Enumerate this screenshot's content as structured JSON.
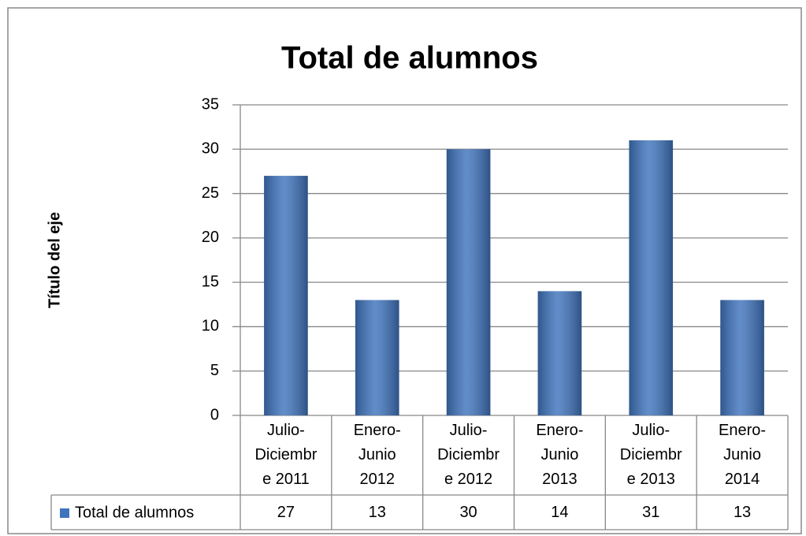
{
  "chart_data": {
    "type": "bar",
    "title": "Total de alumnos",
    "y_axis_title": "Título del eje",
    "categories": [
      "Julio-Diciembre 2011",
      "Enero-Junio 2012",
      "Julio-Diciembre 2012",
      "Enero-Junio 2013",
      "Julio-Diciembre 2013",
      "Enero-Junio 2014"
    ],
    "series": [
      {
        "name": "Total de alumnos",
        "color": "#3f74bd",
        "values": [
          27,
          13,
          30,
          14,
          31,
          13
        ]
      }
    ],
    "ylim": [
      0,
      35
    ],
    "yticks": [
      0,
      5,
      10,
      15,
      20,
      25,
      30,
      35
    ],
    "grid": true,
    "data_table": true
  }
}
